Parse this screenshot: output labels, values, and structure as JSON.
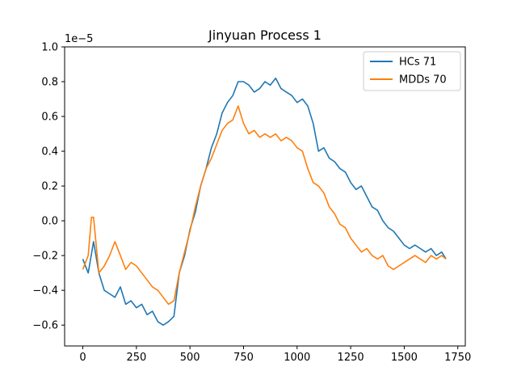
{
  "chart_data": {
    "type": "line",
    "title": "Jinyuan Process 1",
    "xlabel": "",
    "ylabel": "",
    "y_offset_label": "1e−5",
    "xlim": [
      -85,
      1785
    ],
    "ylim": [
      -0.72,
      1.0
    ],
    "x_ticks": [
      0,
      250,
      500,
      750,
      1000,
      1250,
      1500,
      1750
    ],
    "x_tick_labels": [
      "0",
      "250",
      "500",
      "750",
      "1000",
      "1250",
      "1500",
      "1750"
    ],
    "y_ticks": [
      -0.6,
      -0.4,
      -0.2,
      0.0,
      0.2,
      0.4,
      0.6,
      0.8,
      1.0
    ],
    "y_tick_labels": [
      "−0.6",
      "−0.4",
      "−0.2",
      "0.0",
      "0.2",
      "0.4",
      "0.6",
      "0.8",
      "1.0"
    ],
    "grid": false,
    "legend_position": "top-right",
    "series": [
      {
        "name": "HCs 71",
        "color": "#1f77b4",
        "x": [
          0,
          25,
          50,
          75,
          100,
          125,
          150,
          175,
          200,
          225,
          250,
          275,
          300,
          325,
          350,
          375,
          400,
          425,
          450,
          475,
          500,
          525,
          550,
          575,
          600,
          625,
          650,
          675,
          700,
          725,
          750,
          775,
          800,
          825,
          850,
          875,
          900,
          925,
          950,
          975,
          1000,
          1025,
          1050,
          1075,
          1100,
          1125,
          1150,
          1175,
          1200,
          1225,
          1250,
          1275,
          1300,
          1325,
          1350,
          1375,
          1400,
          1425,
          1450,
          1475,
          1500,
          1525,
          1550,
          1575,
          1600,
          1625,
          1650,
          1675,
          1695
        ],
        "y": [
          -0.22,
          -0.3,
          -0.12,
          -0.3,
          -0.4,
          -0.42,
          -0.44,
          -0.38,
          -0.48,
          -0.46,
          -0.5,
          -0.48,
          -0.54,
          -0.52,
          -0.58,
          -0.6,
          -0.58,
          -0.55,
          -0.3,
          -0.2,
          -0.05,
          0.05,
          0.2,
          0.3,
          0.42,
          0.5,
          0.62,
          0.68,
          0.72,
          0.8,
          0.8,
          0.78,
          0.74,
          0.76,
          0.8,
          0.78,
          0.82,
          0.76,
          0.74,
          0.72,
          0.68,
          0.7,
          0.66,
          0.56,
          0.4,
          0.42,
          0.36,
          0.34,
          0.3,
          0.28,
          0.22,
          0.18,
          0.2,
          0.14,
          0.08,
          0.06,
          0.0,
          -0.04,
          -0.06,
          -0.1,
          -0.14,
          -0.16,
          -0.14,
          -0.16,
          -0.18,
          -0.16,
          -0.2,
          -0.18,
          -0.22
        ]
      },
      {
        "name": "MDDs 70",
        "color": "#ff7f0e",
        "x": [
          0,
          25,
          40,
          50,
          75,
          100,
          125,
          150,
          175,
          200,
          225,
          250,
          275,
          300,
          325,
          350,
          375,
          400,
          425,
          450,
          475,
          500,
          525,
          550,
          575,
          600,
          625,
          650,
          675,
          700,
          725,
          750,
          775,
          800,
          825,
          850,
          875,
          900,
          925,
          950,
          975,
          1000,
          1025,
          1050,
          1075,
          1100,
          1125,
          1150,
          1175,
          1200,
          1225,
          1250,
          1275,
          1300,
          1325,
          1350,
          1375,
          1400,
          1425,
          1450,
          1475,
          1500,
          1525,
          1550,
          1575,
          1600,
          1625,
          1650,
          1675,
          1695
        ],
        "y": [
          -0.28,
          -0.2,
          0.02,
          0.02,
          -0.3,
          -0.26,
          -0.2,
          -0.12,
          -0.2,
          -0.28,
          -0.24,
          -0.26,
          -0.3,
          -0.34,
          -0.38,
          -0.4,
          -0.44,
          -0.48,
          -0.46,
          -0.3,
          -0.18,
          -0.06,
          0.08,
          0.2,
          0.3,
          0.36,
          0.44,
          0.52,
          0.56,
          0.58,
          0.66,
          0.56,
          0.5,
          0.52,
          0.48,
          0.5,
          0.48,
          0.5,
          0.46,
          0.48,
          0.46,
          0.42,
          0.4,
          0.3,
          0.22,
          0.2,
          0.16,
          0.08,
          0.04,
          -0.02,
          -0.04,
          -0.1,
          -0.14,
          -0.18,
          -0.16,
          -0.2,
          -0.22,
          -0.2,
          -0.26,
          -0.28,
          -0.26,
          -0.24,
          -0.22,
          -0.2,
          -0.22,
          -0.24,
          -0.2,
          -0.22,
          -0.2,
          -0.22
        ]
      }
    ]
  }
}
